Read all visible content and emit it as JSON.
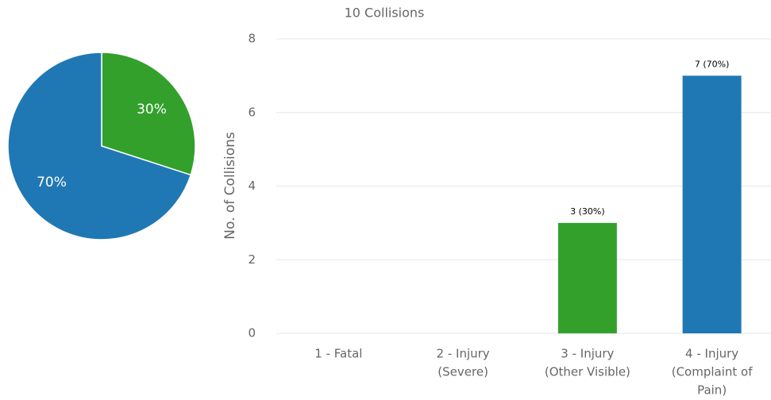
{
  "chart_data": [
    {
      "type": "pie",
      "values": [
        30,
        70
      ],
      "value_labels": [
        "30%",
        "70%"
      ],
      "colors": [
        "#33a02c",
        "#1f78b4"
      ]
    },
    {
      "type": "bar",
      "title": "10 Collisions",
      "y_label": "No. of Collisions",
      "categories": [
        [
          "1 - Fatal"
        ],
        [
          "2 - Injury",
          "(Severe)"
        ],
        [
          "3 - Injury",
          "(Other Visible)"
        ],
        [
          "4 - Injury",
          "(Complaint of",
          "Pain)"
        ]
      ],
      "values": [
        0,
        0,
        3,
        7
      ],
      "value_labels": [
        null,
        null,
        "3 (30%)",
        "7 (70%)"
      ],
      "colors": [
        "#1f78b4",
        "#1f78b4",
        "#33a02c",
        "#1f78b4"
      ],
      "ylim": [
        0,
        8
      ],
      "yticks": [
        0,
        2,
        4,
        6,
        8
      ],
      "grid": true
    }
  ]
}
